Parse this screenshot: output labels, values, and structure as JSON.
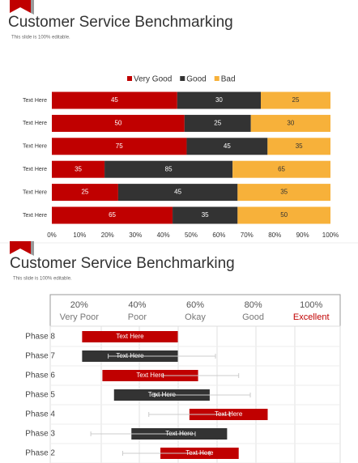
{
  "chart_data": [
    {
      "type": "stacked-bar-100",
      "title": "Customer Service Benchmarking",
      "subtitle": "This slide is 100% editable.",
      "categories": [
        "Text Here",
        "Text Here",
        "Text Here",
        "Text Here",
        "Text Here",
        "Text Here"
      ],
      "series": [
        {
          "name": "Very Good",
          "color": "#c00000",
          "label_color": "#ffffff",
          "values": [
            45,
            50,
            75,
            35,
            25,
            65
          ]
        },
        {
          "name": "Good",
          "color": "#333333",
          "label_color": "#ffffff",
          "values": [
            30,
            25,
            45,
            85,
            45,
            35
          ]
        },
        {
          "name": "Bad",
          "color": "#f7b13a",
          "label_color": "#333333",
          "values": [
            25,
            30,
            35,
            65,
            35,
            50
          ]
        }
      ],
      "xlim": [
        0,
        100
      ],
      "xticks": [
        {
          "value": 0,
          "label": "0%"
        },
        {
          "value": 10,
          "label": "10%"
        },
        {
          "value": 20,
          "label": "20%"
        },
        {
          "value": 30,
          "label": "30%"
        },
        {
          "value": 40,
          "label": "40%"
        },
        {
          "value": 50,
          "label": "50%"
        },
        {
          "value": 60,
          "label": "60%"
        },
        {
          "value": 70,
          "label": "70%"
        },
        {
          "value": 80,
          "label": "80%"
        },
        {
          "value": 90,
          "label": "90%"
        },
        {
          "value": 100,
          "label": "100%"
        }
      ],
      "legend": "top"
    },
    {
      "type": "range-bar",
      "title": "Customer Service Benchmarking",
      "subtitle": "This slide is 100% editable.",
      "header": [
        {
          "scale": "20%",
          "rating": "Very Poor",
          "color": "#777777"
        },
        {
          "scale": "40%",
          "rating": "Poor",
          "color": "#777777"
        },
        {
          "scale": "60%",
          "rating": "Okay",
          "color": "#777777"
        },
        {
          "scale": "80%",
          "rating": "Good",
          "color": "#777777"
        },
        {
          "scale": "100%",
          "rating": "Excellent",
          "color": "#c00000"
        }
      ],
      "categories": [
        "Phase 8",
        "Phase 7",
        "Phase 6",
        "Phase 5",
        "Phase 4",
        "Phase 3",
        "Phase 2"
      ],
      "bar_labels": [
        "Text Here",
        "Text Here",
        "Text Here",
        "Text Here",
        "Text Here",
        "Text Here",
        "Text Here"
      ],
      "colors": [
        "#c00000",
        "#333333",
        "#c00000",
        "#333333",
        "#c00000",
        "#333333",
        "#c00000"
      ],
      "start": [
        11,
        11,
        18,
        22,
        48,
        28,
        38
      ],
      "end": [
        44,
        44,
        51,
        55,
        75,
        61,
        65
      ],
      "whisker_low": [
        null,
        20,
        39,
        36,
        34,
        14,
        25
      ],
      "whisker_high": [
        null,
        57,
        65,
        69,
        62,
        50,
        55
      ],
      "xlim": [
        0,
        100
      ]
    }
  ]
}
